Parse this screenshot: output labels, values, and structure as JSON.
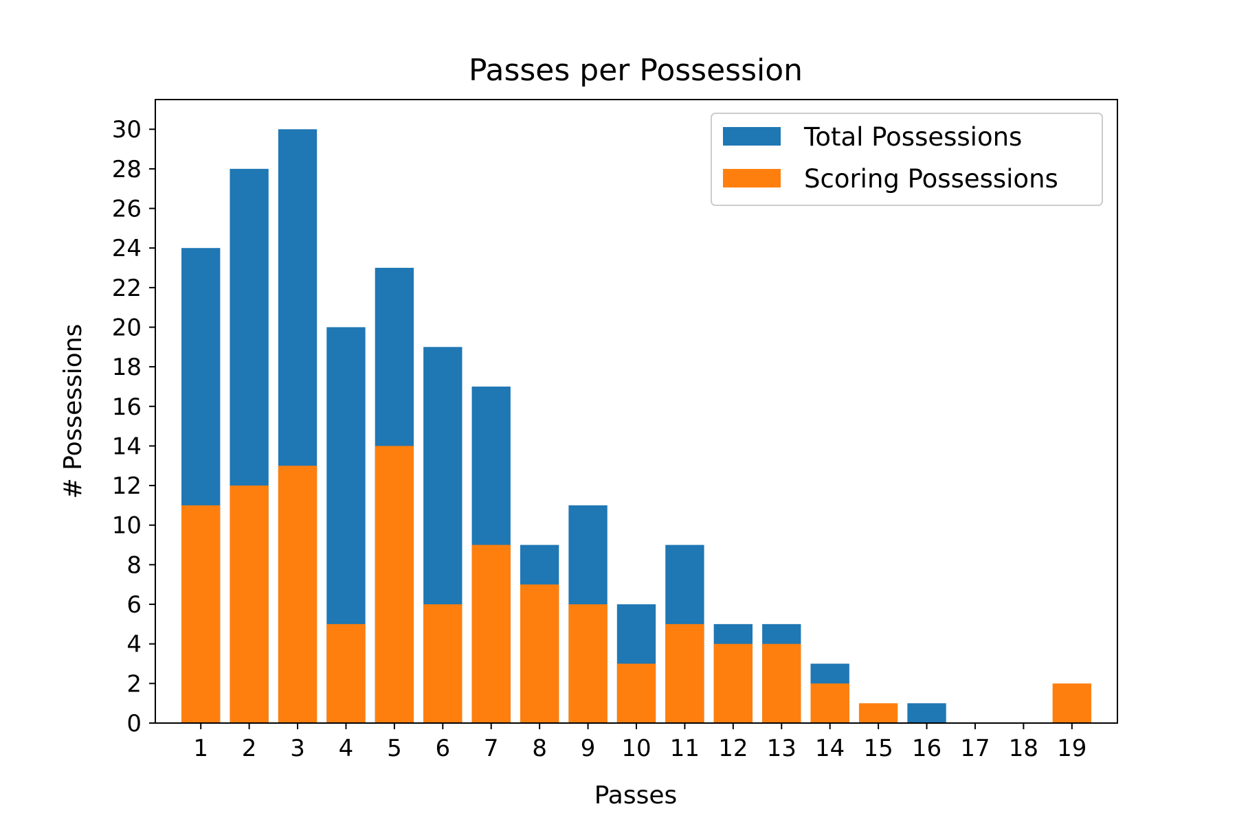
{
  "chart_data": {
    "type": "bar",
    "title": "Passes per Possession",
    "xlabel": "Passes",
    "ylabel": "# Possessions",
    "categories": [
      "1",
      "2",
      "3",
      "4",
      "5",
      "6",
      "7",
      "8",
      "9",
      "10",
      "11",
      "12",
      "13",
      "14",
      "15",
      "16",
      "17",
      "18",
      "19"
    ],
    "series": [
      {
        "name": "Total Possessions",
        "color": "#1f77b4",
        "values": [
          24,
          28,
          30,
          20,
          23,
          19,
          17,
          9,
          11,
          6,
          9,
          5,
          5,
          3,
          0,
          1,
          0,
          0,
          0
        ]
      },
      {
        "name": "Scoring Possessions",
        "color": "#ff7f0e",
        "values": [
          11,
          12,
          13,
          5,
          14,
          6,
          9,
          7,
          6,
          3,
          5,
          4,
          4,
          2,
          1,
          0,
          0,
          0,
          2
        ]
      }
    ],
    "overlay": true,
    "ylim": [
      0,
      31.5
    ],
    "yticks": [
      "0",
      "2",
      "4",
      "6",
      "8",
      "10",
      "12",
      "14",
      "16",
      "18",
      "20",
      "22",
      "24",
      "26",
      "28",
      "30"
    ],
    "grid": false,
    "legend_position": "top-right"
  }
}
